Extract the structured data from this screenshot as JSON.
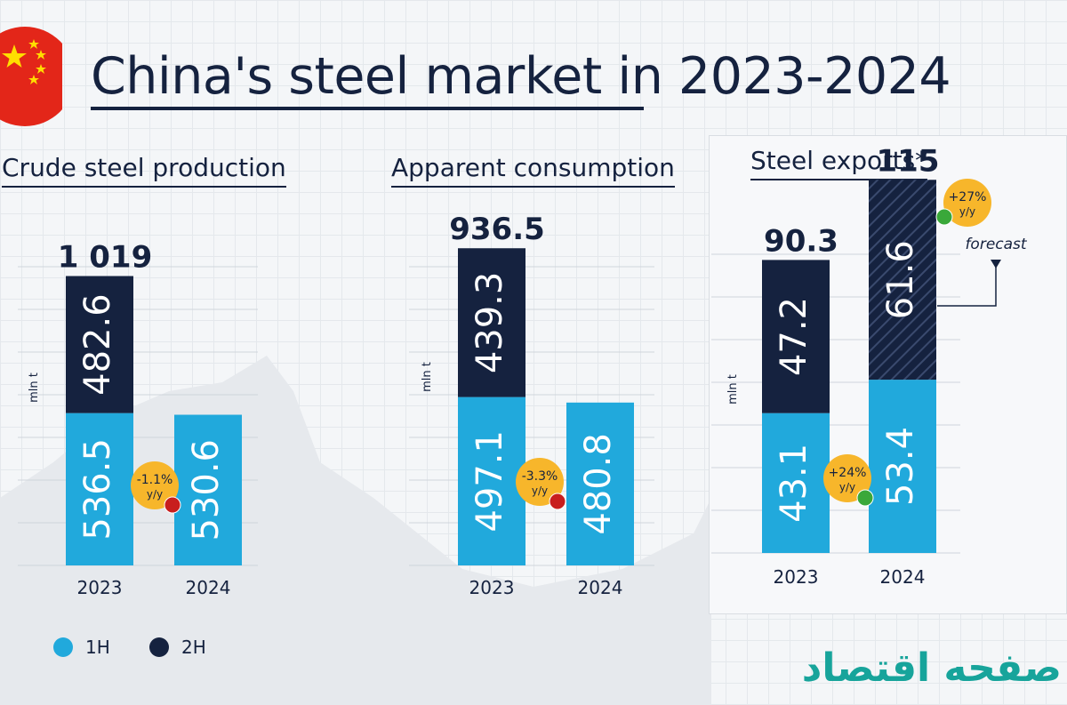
{
  "title": "China's steel market in 2023-2024",
  "title_emphasis": "China's steel market",
  "title_suffix": " in 2023-2024",
  "colors": {
    "h1": "#21a9dc",
    "h2": "#15223f",
    "badge": "#f7b62b",
    "down": "#c81e1e",
    "up": "#3aa83a"
  },
  "legend": [
    {
      "label": "1H",
      "color": "#21a9dc"
    },
    {
      "label": "2H",
      "color": "#15223f"
    }
  ],
  "logo_text": "صفحه اقتصاد",
  "chart_data": [
    {
      "type": "bar",
      "stacked": true,
      "title": "Crude steel production",
      "ylabel": "mln t",
      "categories": [
        "2023",
        "2024"
      ],
      "series": [
        {
          "name": "1H",
          "values": [
            536.5,
            530.6
          ]
        },
        {
          "name": "2H",
          "values": [
            482.6,
            null
          ]
        }
      ],
      "totals": [
        "1 019",
        ""
      ],
      "change_badge": {
        "value": "-1.1%",
        "unit": "y/y",
        "direction": "down"
      }
    },
    {
      "type": "bar",
      "stacked": true,
      "title": "Apparent consumption",
      "ylabel": "mln t",
      "categories": [
        "2023",
        "2024"
      ],
      "series": [
        {
          "name": "1H",
          "values": [
            497.1,
            480.8
          ]
        },
        {
          "name": "2H",
          "values": [
            439.3,
            null
          ]
        }
      ],
      "totals": [
        "936.5",
        ""
      ],
      "change_badge": {
        "value": "-3.3%",
        "unit": "y/y",
        "direction": "down"
      }
    },
    {
      "type": "bar",
      "stacked": true,
      "title": "Steel exports*",
      "ylabel": "mln t",
      "categories": [
        "2023",
        "2024"
      ],
      "series": [
        {
          "name": "1H",
          "values": [
            43.1,
            53.4
          ]
        },
        {
          "name": "2H",
          "values": [
            47.2,
            61.6
          ]
        }
      ],
      "totals": [
        "90.3",
        "115"
      ],
      "forecast_segment": {
        "category": "2024",
        "series": "2H"
      },
      "forecast_label": "forecast",
      "change_badge": {
        "value": "+24%",
        "unit": "y/y",
        "direction": "up"
      },
      "total_change_badge": {
        "value": "+27%",
        "unit": "y/y",
        "direction": "up"
      }
    }
  ]
}
